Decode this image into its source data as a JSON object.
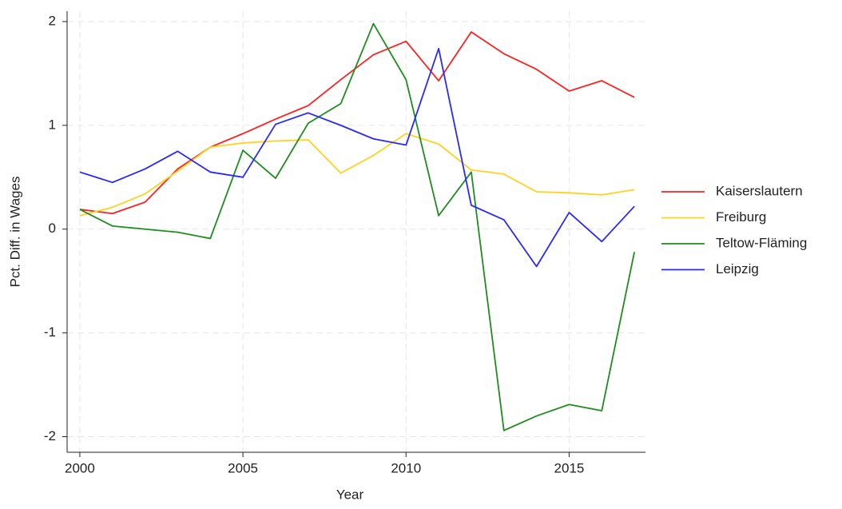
{
  "chart_data": {
    "type": "line",
    "x_label": "Year",
    "y_label": "Pct. Diff. in Wages",
    "x": [
      2000,
      2001,
      2002,
      2003,
      2004,
      2005,
      2006,
      2007,
      2008,
      2009,
      2010,
      2011,
      2012,
      2013,
      2014,
      2015,
      2016,
      2017
    ],
    "series": [
      {
        "name": "Kaiserslautern",
        "color": "#ff2020",
        "values": [
          0.19,
          0.15,
          0.26,
          0.58,
          0.79,
          0.92,
          1.06,
          1.19,
          1.44,
          1.68,
          1.81,
          1.43,
          1.9,
          1.69,
          1.54,
          1.33,
          1.43,
          1.27
        ]
      },
      {
        "name": "Freiburg",
        "color": "#ffd21e",
        "values": [
          0.13,
          0.21,
          0.34,
          0.56,
          0.79,
          0.83,
          0.85,
          0.86,
          0.54,
          0.71,
          0.92,
          0.82,
          0.57,
          0.53,
          0.36,
          0.35,
          0.33,
          0.38
        ]
      },
      {
        "name": "Teltow-Fläming",
        "color": "#1e8c1e",
        "values": [
          0.19,
          0.03,
          0.0,
          -0.03,
          -0.09,
          0.76,
          0.49,
          1.02,
          1.21,
          1.98,
          1.44,
          0.13,
          0.55,
          -1.94,
          -1.8,
          -1.69,
          -1.75,
          -0.22
        ]
      },
      {
        "name": "Leipzig",
        "color": "#2828ff",
        "values": [
          0.55,
          0.45,
          0.58,
          0.75,
          0.55,
          0.5,
          1.01,
          1.12,
          1.0,
          0.87,
          0.81,
          1.74,
          0.23,
          0.09,
          -0.36,
          0.16,
          -0.12,
          0.22
        ]
      }
    ],
    "xlim": [
      1999.61,
      2017.34
    ],
    "ylim": [
      -2.15,
      2.1
    ],
    "xticks": [
      2000,
      2005,
      2010,
      2015
    ],
    "yticks": [
      -2,
      -1,
      0,
      1,
      2
    ],
    "grid": true,
    "legend": "right"
  }
}
